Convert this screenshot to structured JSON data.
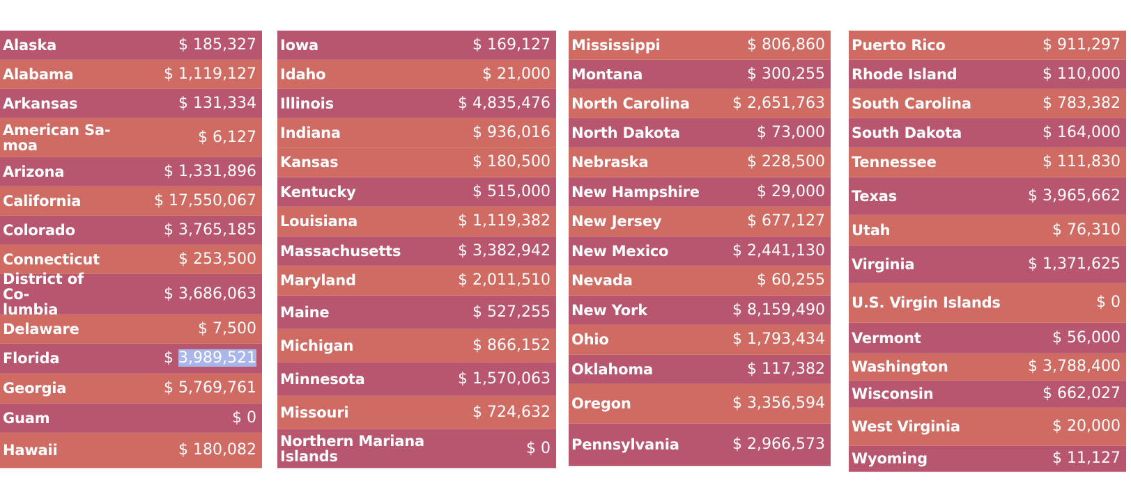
{
  "columns": [
    {
      "rows": [
        {
          "name": "Alaska",
          "amount": "$ 185,327",
          "color": "plum",
          "h": 42
        },
        {
          "name": "Alabama",
          "amount": "$ 1,119,127",
          "color": "coral",
          "h": 42
        },
        {
          "name": "Arkansas",
          "amount": "$ 131,334",
          "color": "plum",
          "h": 42
        },
        {
          "name": "American Sa-\nmoa",
          "amount": "$ 6,127",
          "color": "coral",
          "h": 56
        },
        {
          "name": "Arizona",
          "amount": "$ 1,331,896",
          "color": "plum",
          "h": 42
        },
        {
          "name": "California",
          "amount": "$ 17,550,067",
          "color": "coral",
          "h": 42
        },
        {
          "name": "Colorado",
          "amount": "$ 3,765,185",
          "color": "plum",
          "h": 42
        },
        {
          "name": "Connecticut",
          "amount": "$ 253,500",
          "color": "coral",
          "h": 42
        },
        {
          "name": "District of Co-\nlumbia",
          "amount": "$ 3,686,063",
          "color": "plum",
          "h": 58
        },
        {
          "name": "Delaware",
          "amount": "$ 7,500",
          "color": "coral",
          "h": 42
        },
        {
          "name": "Florida",
          "amount_prefix": "$ ",
          "amount_selected": "3,989,521",
          "color": "plum",
          "h": 43
        },
        {
          "name": "Georgia",
          "amount": "$ 5,769,761",
          "color": "coral",
          "h": 43
        },
        {
          "name": "Guam",
          "amount": "$ 0",
          "color": "plum",
          "h": 42
        },
        {
          "name": "Hawaii",
          "amount": "$ 180,082",
          "color": "coral",
          "h": 51
        }
      ]
    },
    {
      "rows": [
        {
          "name": "Iowa",
          "amount": "$ 169,127",
          "color": "plum",
          "h": 42
        },
        {
          "name": "Idaho",
          "amount": "$ 21,000",
          "color": "coral",
          "h": 42
        },
        {
          "name": "Illinois",
          "amount": "$ 4,835,476",
          "color": "plum",
          "h": 42
        },
        {
          "name": "Indiana",
          "amount": "$ 936,016",
          "color": "coral",
          "h": 42
        },
        {
          "name": "Kansas",
          "amount": "$ 180,500",
          "color": "coral",
          "h": 43
        },
        {
          "name": "Kentucky",
          "amount": "$ 515,000",
          "color": "plum",
          "h": 42
        },
        {
          "name": "Louisiana",
          "amount": "$ 1,119,382",
          "color": "coral",
          "h": 43
        },
        {
          "name": "Massachusetts",
          "amount": "$ 3,382,942",
          "color": "plum",
          "h": 42
        },
        {
          "name": "Maryland",
          "amount": "$ 2,011,510",
          "color": "coral",
          "h": 43
        },
        {
          "name": "Maine",
          "amount": "$ 527,255",
          "color": "plum",
          "h": 48
        },
        {
          "name": "Michigan",
          "amount": "$ 866,152",
          "color": "coral",
          "h": 48
        },
        {
          "name": "Minnesota",
          "amount": "$ 1,570,063",
          "color": "plum",
          "h": 48
        },
        {
          "name": "Missouri",
          "amount": "$ 724,632",
          "color": "coral",
          "h": 48
        },
        {
          "name": "Northern Mariana\nIslands",
          "amount": "$ 0",
          "color": "plum",
          "h": 56
        }
      ]
    },
    {
      "rows": [
        {
          "name": "Mississippi",
          "amount": "$ 806,860",
          "color": "coral",
          "h": 42
        },
        {
          "name": "Montana",
          "amount": "$ 300,255",
          "color": "plum",
          "h": 42
        },
        {
          "name": "North Carolina",
          "amount": "$ 2,651,763",
          "color": "coral",
          "h": 42
        },
        {
          "name": "North Dakota",
          "amount": "$ 73,000",
          "color": "plum",
          "h": 42
        },
        {
          "name": "Nebraska",
          "amount": "$ 228,500",
          "color": "coral",
          "h": 43
        },
        {
          "name": "New Hampshire",
          "amount": "$ 29,000",
          "color": "plum",
          "h": 42
        },
        {
          "name": "New Jersey",
          "amount": "$ 677,127",
          "color": "coral",
          "h": 43
        },
        {
          "name": "New Mexico",
          "amount": "$ 2,441,130",
          "color": "plum",
          "h": 42
        },
        {
          "name": "Nevada",
          "amount": "$ 60,255",
          "color": "coral",
          "h": 43
        },
        {
          "name": "New York",
          "amount": "$ 8,159,490",
          "color": "plum",
          "h": 42
        },
        {
          "name": "Ohio",
          "amount": "$ 1,793,434",
          "color": "coral",
          "h": 43
        },
        {
          "name": "Oklahoma",
          "amount": "$ 117,382",
          "color": "plum",
          "h": 42
        },
        {
          "name": "Oregon",
          "amount": "$ 3,356,594",
          "color": "coral",
          "h": 57
        },
        {
          "name": "Pennsylvania",
          "amount": "$ 2,966,573",
          "color": "plum",
          "h": 61
        }
      ]
    },
    {
      "rows": [
        {
          "name": "Puerto Rico",
          "amount": "$ 911,297",
          "color": "coral",
          "h": 42
        },
        {
          "name": "Rhode Island",
          "amount": "$ 110,000",
          "color": "plum",
          "h": 42
        },
        {
          "name": "South Carolina",
          "amount": "$ 783,382",
          "color": "coral",
          "h": 42
        },
        {
          "name": "South Dakota",
          "amount": "$ 164,000",
          "color": "plum",
          "h": 42
        },
        {
          "name": "Tennessee",
          "amount": "$ 111,830",
          "color": "coral",
          "h": 43
        },
        {
          "name": "Texas",
          "amount": "$ 3,965,662",
          "color": "plum",
          "h": 54
        },
        {
          "name": "Utah",
          "amount": "$ 76,310",
          "color": "coral",
          "h": 44
        },
        {
          "name": "Virginia",
          "amount": "$ 1,371,625",
          "color": "plum",
          "h": 54
        },
        {
          "name": "U.S. Virgin Islands",
          "amount": "$ 0",
          "color": "coral",
          "h": 57
        },
        {
          "name": "Vermont",
          "amount": "$ 56,000",
          "color": "plum",
          "h": 44
        },
        {
          "name": "Washington",
          "amount": "$ 3,788,400",
          "color": "coral",
          "h": 39
        },
        {
          "name": "Wisconsin",
          "amount": "$ 662,027",
          "color": "plum",
          "h": 39
        },
        {
          "name": "West Virginia",
          "amount": "$ 20,000",
          "color": "coral",
          "h": 55
        },
        {
          "name": "Wyoming",
          "amount": "$ 11,127",
          "color": "plum",
          "h": 37
        }
      ]
    }
  ]
}
